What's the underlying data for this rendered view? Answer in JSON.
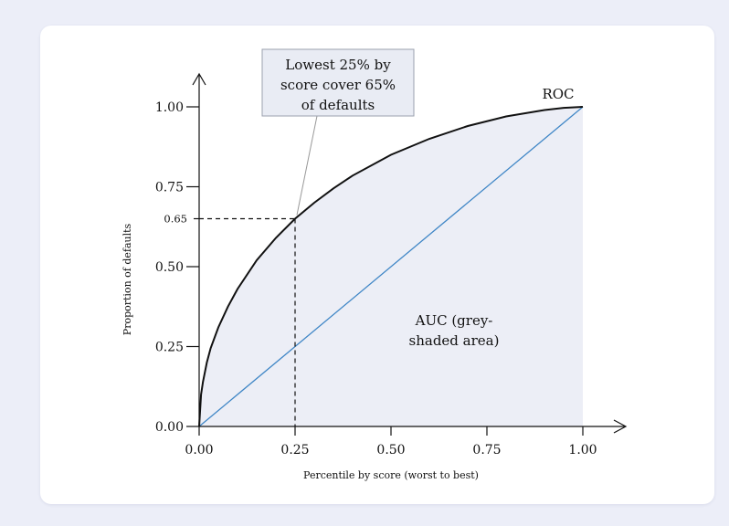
{
  "chart_data": {
    "type": "line",
    "xlabel": "Percentile by score (worst to best)",
    "ylabel": "Proportion of defaults",
    "xlim": [
      0,
      1
    ],
    "ylim": [
      0,
      1
    ],
    "x_ticks": [
      "0.00",
      "0.25",
      "0.50",
      "0.75",
      "1.00"
    ],
    "y_ticks": [
      "0.00",
      "0.25",
      "0.50",
      "0.75",
      "1.00"
    ],
    "y_marker": {
      "value": 0.65,
      "label": "0.65"
    },
    "x_marker": {
      "value": 0.25
    },
    "series": [
      {
        "name": "ROC",
        "x": [
          0,
          0.005,
          0.01,
          0.02,
          0.03,
          0.05,
          0.075,
          0.1,
          0.15,
          0.2,
          0.25,
          0.3,
          0.35,
          0.4,
          0.5,
          0.6,
          0.7,
          0.8,
          0.9,
          0.95,
          1.0
        ],
        "y": [
          0,
          0.1,
          0.14,
          0.2,
          0.245,
          0.31,
          0.375,
          0.43,
          0.52,
          0.59,
          0.65,
          0.7,
          0.745,
          0.785,
          0.85,
          0.9,
          0.94,
          0.97,
          0.99,
          0.997,
          1.0
        ],
        "color": "#111111"
      },
      {
        "name": "",
        "x": [
          0,
          1
        ],
        "y": [
          0,
          1
        ],
        "color": "#3f86c6"
      }
    ],
    "annotations": [
      {
        "text_lines": [
          "Lowest 25% by",
          "score cover 65%",
          "of defaults"
        ],
        "point": [
          0.25,
          0.65
        ]
      },
      {
        "text_lines": [
          "AUC (grey-",
          "shaded area)"
        ]
      }
    ],
    "shade_color": "#eceef6",
    "callout_bg": "#e9ecf4",
    "grid": false,
    "legend": "none"
  }
}
